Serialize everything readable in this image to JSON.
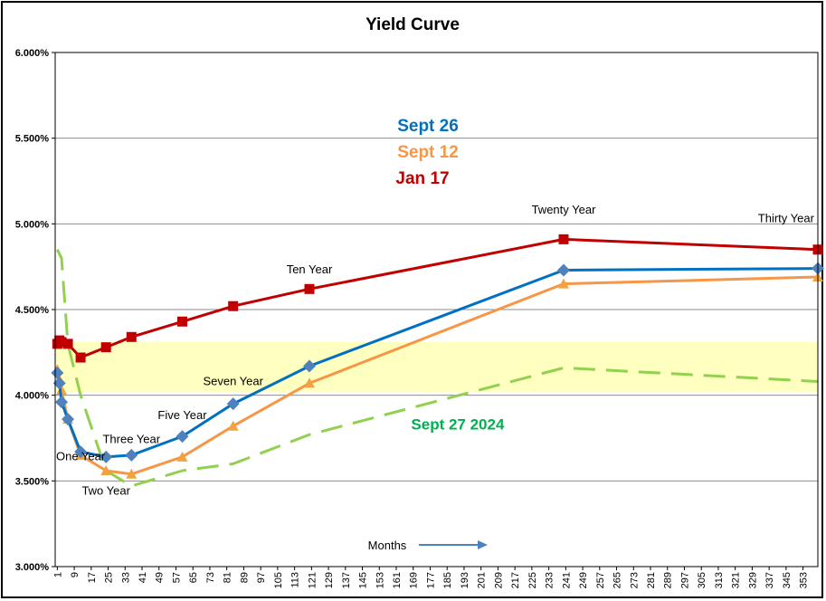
{
  "chart_data": {
    "type": "line",
    "title": "Yield Curve",
    "xlabel": "Months",
    "ylabel": "",
    "xlim": [
      0,
      360
    ],
    "ylim": [
      3.0,
      6.0
    ],
    "grid": true,
    "y_ticks": [
      3.0,
      3.5,
      4.0,
      4.5,
      5.0,
      5.5,
      6.0
    ],
    "y_tick_labels": [
      "3.000%",
      "3.500%",
      "4.000%",
      "4.500%",
      "5.000%",
      "5.500%",
      "6.000%"
    ],
    "x_ticks": [
      1,
      9,
      17,
      25,
      33,
      41,
      49,
      57,
      65,
      73,
      81,
      89,
      97,
      105,
      113,
      121,
      129,
      137,
      145,
      153,
      161,
      169,
      177,
      185,
      193,
      201,
      209,
      217,
      225,
      233,
      241,
      249,
      257,
      265,
      273,
      281,
      289,
      297,
      305,
      313,
      321,
      329,
      337,
      345,
      353
    ],
    "band": {
      "y_from": 4.02,
      "y_to": 4.31,
      "color": "#ffffc0"
    },
    "legend": [
      {
        "name": "Sept 26",
        "color": "#0070c0"
      },
      {
        "name": "Sept 12",
        "color": "#f79646"
      },
      {
        "name": "Jan 17",
        "color": "#c00000"
      }
    ],
    "series": [
      {
        "name": "Jan 17",
        "color": "#c00000",
        "marker": "square",
        "x": [
          1,
          2,
          3,
          6,
          12,
          24,
          36,
          60,
          84,
          120,
          240,
          360
        ],
        "values": [
          4.3,
          4.32,
          4.31,
          4.3,
          4.22,
          4.28,
          4.34,
          4.43,
          4.52,
          4.62,
          4.91,
          4.85
        ]
      },
      {
        "name": "Sept 26",
        "color": "#0070c0",
        "marker": "diamond",
        "x": [
          1,
          2,
          3,
          6,
          12,
          24,
          36,
          60,
          84,
          120,
          240,
          360
        ],
        "values": [
          4.13,
          4.07,
          3.96,
          3.86,
          3.67,
          3.64,
          3.65,
          3.76,
          3.95,
          4.17,
          4.73,
          4.74
        ]
      },
      {
        "name": "Sept 12",
        "color": "#f79646",
        "marker": "triangle",
        "x": [
          1,
          2,
          3,
          6,
          12,
          24,
          36,
          60,
          84,
          120,
          240,
          360
        ],
        "values": [
          4.15,
          4.09,
          4.03,
          3.86,
          3.65,
          3.56,
          3.54,
          3.64,
          3.82,
          4.07,
          4.65,
          4.69
        ]
      },
      {
        "name": "Sept 27 2024",
        "color": "#92d050",
        "marker": "none",
        "dashed": true,
        "x": [
          1,
          3,
          6,
          12,
          24,
          36,
          60,
          84,
          120,
          240,
          360
        ],
        "values": [
          4.85,
          4.8,
          4.3,
          4.0,
          3.56,
          3.47,
          3.56,
          3.6,
          3.77,
          4.16,
          4.08
        ]
      }
    ],
    "annotations": [
      {
        "text": "One Year",
        "x": 12,
        "y": 3.62
      },
      {
        "text": "Two Year",
        "x": 24,
        "y": 3.42
      },
      {
        "text": "Three Year",
        "x": 36,
        "y": 3.72
      },
      {
        "text": "Five Year",
        "x": 60,
        "y": 3.86
      },
      {
        "text": "Seven Year",
        "x": 84,
        "y": 4.06
      },
      {
        "text": "Ten Year",
        "x": 120,
        "y": 4.71
      },
      {
        "text": "Twenty Year",
        "x": 240,
        "y": 5.06
      },
      {
        "text": "Thirty Year",
        "x": 345,
        "y": 5.01
      }
    ],
    "series_label": {
      "text": "Sept 27 2024",
      "color": "#00b050",
      "x": 190,
      "y": 3.8
    }
  }
}
